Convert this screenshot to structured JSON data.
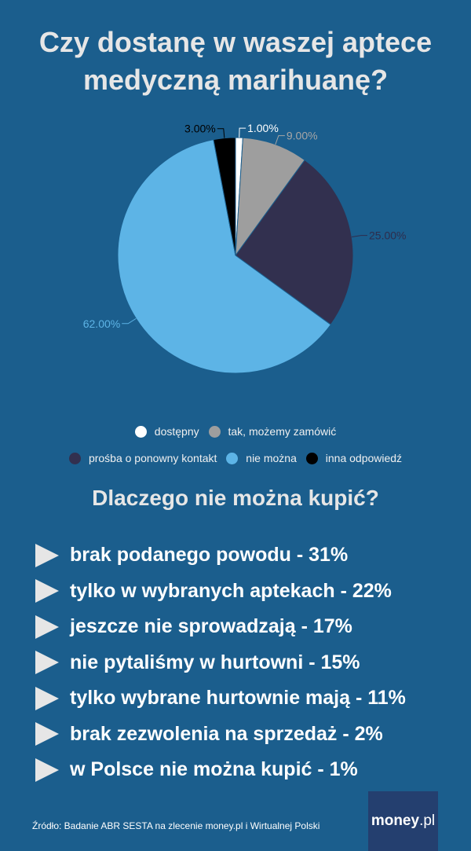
{
  "title_line1": "Czy dostanę w waszej aptece",
  "title_line2": "medyczną marihuanę?",
  "chart_data": {
    "type": "pie",
    "title": "Czy dostanę w waszej aptece medyczną marihuanę?",
    "categories": [
      "dostępny",
      "tak, możemy zamówić",
      "prośba o ponowny kontakt",
      "nie można",
      "inna odpowiedź"
    ],
    "values": [
      1,
      9,
      25,
      62,
      3
    ],
    "labels": [
      "1.00%",
      "9.00%",
      "25.00%",
      "62.00%",
      "3.00%"
    ],
    "colors": [
      "#ffffff",
      "#9e9e9e",
      "#32304f",
      "#5db4e6",
      "#000000"
    ],
    "label_colors": [
      "#ffffff",
      "#a6a6a6",
      "#2e2d4d",
      "#5db4e6",
      "#000000"
    ],
    "legend_position": "bottom"
  },
  "subtitle": "Dlaczego nie można kupić?",
  "reasons": [
    "brak podanego powodu - 31%",
    "tylko w wybranych aptekach - 22%",
    "jeszcze nie sprowadzają - 17%",
    "nie pytaliśmy w hurtowni - 15%",
    "tylko wybrane hurtownie mają - 11%",
    "brak zezwolenia na sprzedaż - 2%",
    "w Polsce nie można kupić - 1%"
  ],
  "source": "Źródło: Badanie ABR SESTA na zlecenie money.pl i Wirtualnej Polski",
  "logo": {
    "main": "money",
    "suffix": ".pl"
  }
}
